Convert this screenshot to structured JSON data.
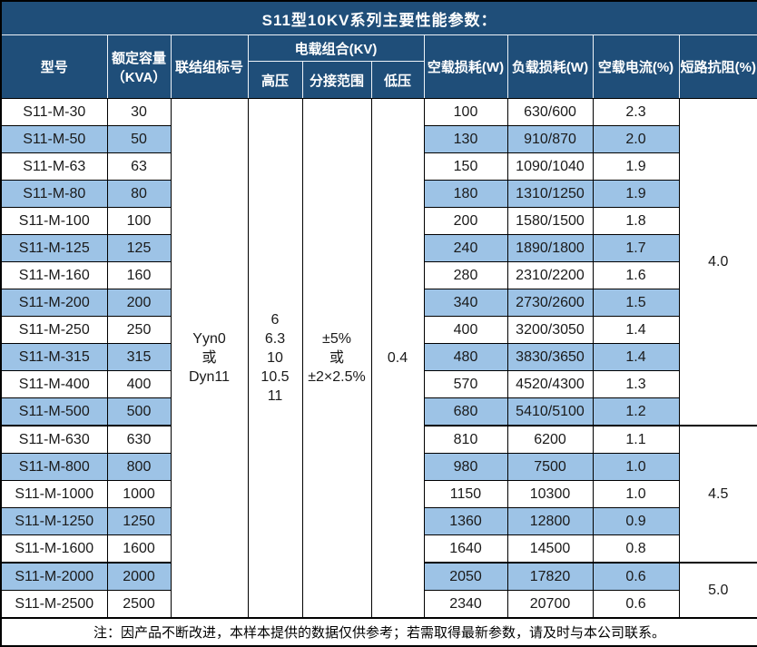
{
  "title": "S11型10KV系列主要性能参数：",
  "colors": {
    "header_bg": "#1F4E79",
    "zebra_row_bg": "#9DC3E6",
    "header_text": "#ffffff",
    "body_text": "#1a1a1a",
    "border": "#000000"
  },
  "header": {
    "model": "型号",
    "capacity_line1": "额定容量",
    "capacity_line2": "（KVA）",
    "connection": "联结组标号",
    "voltage_group": "电载组合(KV)",
    "hv": "高压",
    "tap_range": "分接范围",
    "lv": "低压",
    "no_load_loss": "空载损耗(W)",
    "load_loss": "负载损耗(W)",
    "no_load_current": "空载电流(%)",
    "impedance": "短路抗阻(%)"
  },
  "merged": {
    "connection_lines": [
      "Yyn0",
      "或",
      "Dyn11"
    ],
    "hv_lines": [
      "6",
      "6.3",
      "10",
      "10.5",
      "11"
    ],
    "tap_lines": [
      "±5%",
      "或",
      "±2×2.5%"
    ],
    "lv": "0.4"
  },
  "rows": [
    {
      "model": "S11-M-30",
      "capacity": "30",
      "no_load_loss": "100",
      "load_loss": "630/600",
      "no_load_current": "2.3"
    },
    {
      "model": "S11-M-50",
      "capacity": "50",
      "no_load_loss": "130",
      "load_loss": "910/870",
      "no_load_current": "2.0"
    },
    {
      "model": "S11-M-63",
      "capacity": "63",
      "no_load_loss": "150",
      "load_loss": "1090/1040",
      "no_load_current": "1.9"
    },
    {
      "model": "S11-M-80",
      "capacity": "80",
      "no_load_loss": "180",
      "load_loss": "1310/1250",
      "no_load_current": "1.9"
    },
    {
      "model": "S11-M-100",
      "capacity": "100",
      "no_load_loss": "200",
      "load_loss": "1580/1500",
      "no_load_current": "1.8"
    },
    {
      "model": "S11-M-125",
      "capacity": "125",
      "no_load_loss": "240",
      "load_loss": "1890/1800",
      "no_load_current": "1.7"
    },
    {
      "model": "S11-M-160",
      "capacity": "160",
      "no_load_loss": "280",
      "load_loss": "2310/2200",
      "no_load_current": "1.6"
    },
    {
      "model": "S11-M-200",
      "capacity": "200",
      "no_load_loss": "340",
      "load_loss": "2730/2600",
      "no_load_current": "1.5"
    },
    {
      "model": "S11-M-250",
      "capacity": "250",
      "no_load_loss": "400",
      "load_loss": "3200/3050",
      "no_load_current": "1.4"
    },
    {
      "model": "S11-M-315",
      "capacity": "315",
      "no_load_loss": "480",
      "load_loss": "3830/3650",
      "no_load_current": "1.4"
    },
    {
      "model": "S11-M-400",
      "capacity": "400",
      "no_load_loss": "570",
      "load_loss": "4520/4300",
      "no_load_current": "1.3"
    },
    {
      "model": "S11-M-500",
      "capacity": "500",
      "no_load_loss": "680",
      "load_loss": "5410/5100",
      "no_load_current": "1.2"
    },
    {
      "model": "S11-M-630",
      "capacity": "630",
      "no_load_loss": "810",
      "load_loss": "6200",
      "no_load_current": "1.1"
    },
    {
      "model": "S11-M-800",
      "capacity": "800",
      "no_load_loss": "980",
      "load_loss": "7500",
      "no_load_current": "1.0"
    },
    {
      "model": "S11-M-1000",
      "capacity": "1000",
      "no_load_loss": "1150",
      "load_loss": "10300",
      "no_load_current": "1.0"
    },
    {
      "model": "S11-M-1250",
      "capacity": "1250",
      "no_load_loss": "1360",
      "load_loss": "12800",
      "no_load_current": "0.9"
    },
    {
      "model": "S11-M-1600",
      "capacity": "1600",
      "no_load_loss": "1640",
      "load_loss": "14500",
      "no_load_current": "0.8"
    },
    {
      "model": "S11-M-2000",
      "capacity": "2000",
      "no_load_loss": "2050",
      "load_loss": "17820",
      "no_load_current": "0.6"
    },
    {
      "model": "S11-M-2500",
      "capacity": "2500",
      "no_load_loss": "2340",
      "load_loss": "20700",
      "no_load_current": "0.6"
    }
  ],
  "impedance_groups": [
    {
      "value": "4.0",
      "start": 0,
      "span": 12
    },
    {
      "value": "4.5",
      "start": 12,
      "span": 5
    },
    {
      "value": "5.0",
      "start": 17,
      "span": 2
    }
  ],
  "footer": "注：因产品不断改进，本样本提供的数据仅供参考；若需取得最新参数，请及时与本公司联系。"
}
